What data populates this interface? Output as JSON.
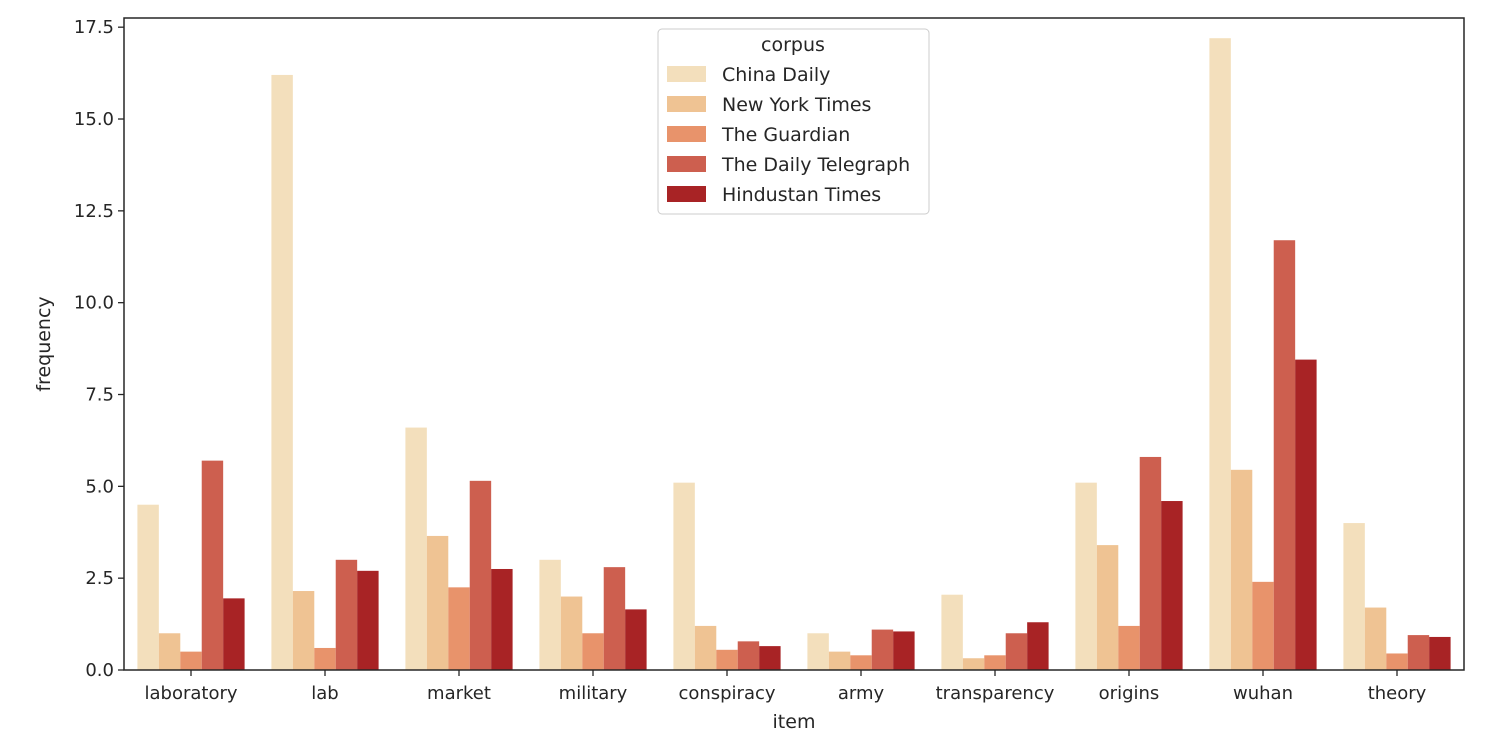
{
  "chart_data": {
    "type": "bar",
    "xlabel": "item",
    "ylabel": "frequency",
    "ylim": [
      0,
      17.75
    ],
    "yticks": [
      "0.0",
      "2.5",
      "5.0",
      "7.5",
      "10.0",
      "12.5",
      "15.0",
      "17.5"
    ],
    "grid": false,
    "categories": [
      "laboratory",
      "lab",
      "market",
      "military",
      "conspiracy",
      "army",
      "transparency",
      "origins",
      "wuhan",
      "theory"
    ],
    "legend": {
      "title": "corpus",
      "placement": "upper center"
    },
    "series": [
      {
        "name": "China Daily",
        "color": "#f3dfbc",
        "values": [
          4.5,
          16.2,
          6.6,
          3.0,
          5.1,
          1.0,
          2.05,
          5.1,
          17.2,
          4.0
        ]
      },
      {
        "name": "New York Times",
        "color": "#efc393",
        "values": [
          1.0,
          2.15,
          3.65,
          2.0,
          1.2,
          0.5,
          0.32,
          3.4,
          5.45,
          1.7
        ]
      },
      {
        "name": "The Guardian",
        "color": "#e8936b",
        "values": [
          0.5,
          0.6,
          2.25,
          1.0,
          0.55,
          0.4,
          0.4,
          1.2,
          2.4,
          0.45
        ]
      },
      {
        "name": "The Daily Telegraph",
        "color": "#cd5f4f",
        "values": [
          5.7,
          3.0,
          5.15,
          2.8,
          0.78,
          1.1,
          1.0,
          5.8,
          11.7,
          0.95
        ]
      },
      {
        "name": "Hindustan Times",
        "color": "#a82325",
        "values": [
          1.95,
          2.7,
          2.75,
          1.65,
          0.65,
          1.05,
          1.3,
          4.6,
          8.45,
          0.9
        ]
      }
    ]
  }
}
